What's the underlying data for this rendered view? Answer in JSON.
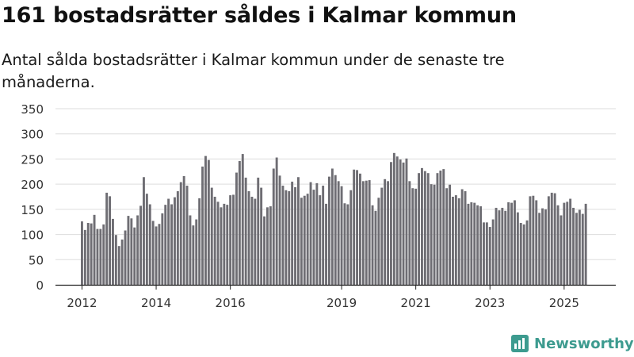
{
  "header": {
    "title": "161 bostadsrätter såldes i Kalmar kommun",
    "subtitle": "Antal sålda bostadsrätter i Kalmar kommun under de senaste tre månaderna."
  },
  "brand": {
    "name": "Newsworthy",
    "icon": "newsworthy-logo-icon",
    "color": "#3d9b8f"
  },
  "colors": {
    "bar": "#6e6d73",
    "highlight": "#2a9d8f",
    "grid": "#dddddd",
    "axis": "#222222"
  },
  "chart_data": {
    "type": "bar",
    "title": "161 bostadsrätter såldes i Kalmar kommun",
    "xlabel": "",
    "ylabel": "",
    "ylim": [
      0,
      350
    ],
    "yticks": [
      0,
      50,
      100,
      150,
      200,
      250,
      300,
      350
    ],
    "xticks": [
      {
        "label": "2012",
        "index": 0
      },
      {
        "label": "2014",
        "index": 24
      },
      {
        "label": "2016",
        "index": 48
      },
      {
        "label": "2019",
        "index": 84
      },
      {
        "label": "2021",
        "index": 108
      },
      {
        "label": "2023",
        "index": 132
      },
      {
        "label": "2025",
        "index": 156
      }
    ],
    "highlight": {
      "index": 164,
      "label": "161"
    },
    "values": [
      126,
      109,
      123,
      122,
      139,
      111,
      111,
      120,
      183,
      176,
      131,
      99,
      77,
      90,
      108,
      137,
      132,
      114,
      138,
      157,
      214,
      181,
      160,
      127,
      116,
      121,
      142,
      159,
      171,
      160,
      174,
      186,
      204,
      216,
      197,
      138,
      118,
      130,
      172,
      235,
      256,
      248,
      193,
      175,
      165,
      154,
      161,
      159,
      178,
      179,
      223,
      246,
      260,
      213,
      186,
      175,
      171,
      213,
      193,
      136,
      154,
      156,
      231,
      253,
      217,
      197,
      188,
      186,
      205,
      194,
      214,
      173,
      177,
      181,
      204,
      189,
      202,
      178,
      197,
      161,
      215,
      231,
      218,
      206,
      196,
      162,
      160,
      188,
      229,
      228,
      221,
      206,
      207,
      208,
      158,
      147,
      173,
      193,
      210,
      206,
      244,
      262,
      255,
      249,
      243,
      251,
      206,
      192,
      191,
      222,
      232,
      226,
      222,
      200,
      199,
      222,
      227,
      230,
      192,
      199,
      175,
      178,
      172,
      190,
      186,
      161,
      164,
      163,
      158,
      156,
      124,
      124,
      115,
      130,
      153,
      148,
      153,
      147,
      164,
      163,
      168,
      144,
      123,
      120,
      128,
      176,
      177,
      168,
      143,
      152,
      150,
      176,
      183,
      182,
      158,
      138,
      163,
      165,
      171,
      153,
      143,
      149,
      141,
      161
    ]
  }
}
